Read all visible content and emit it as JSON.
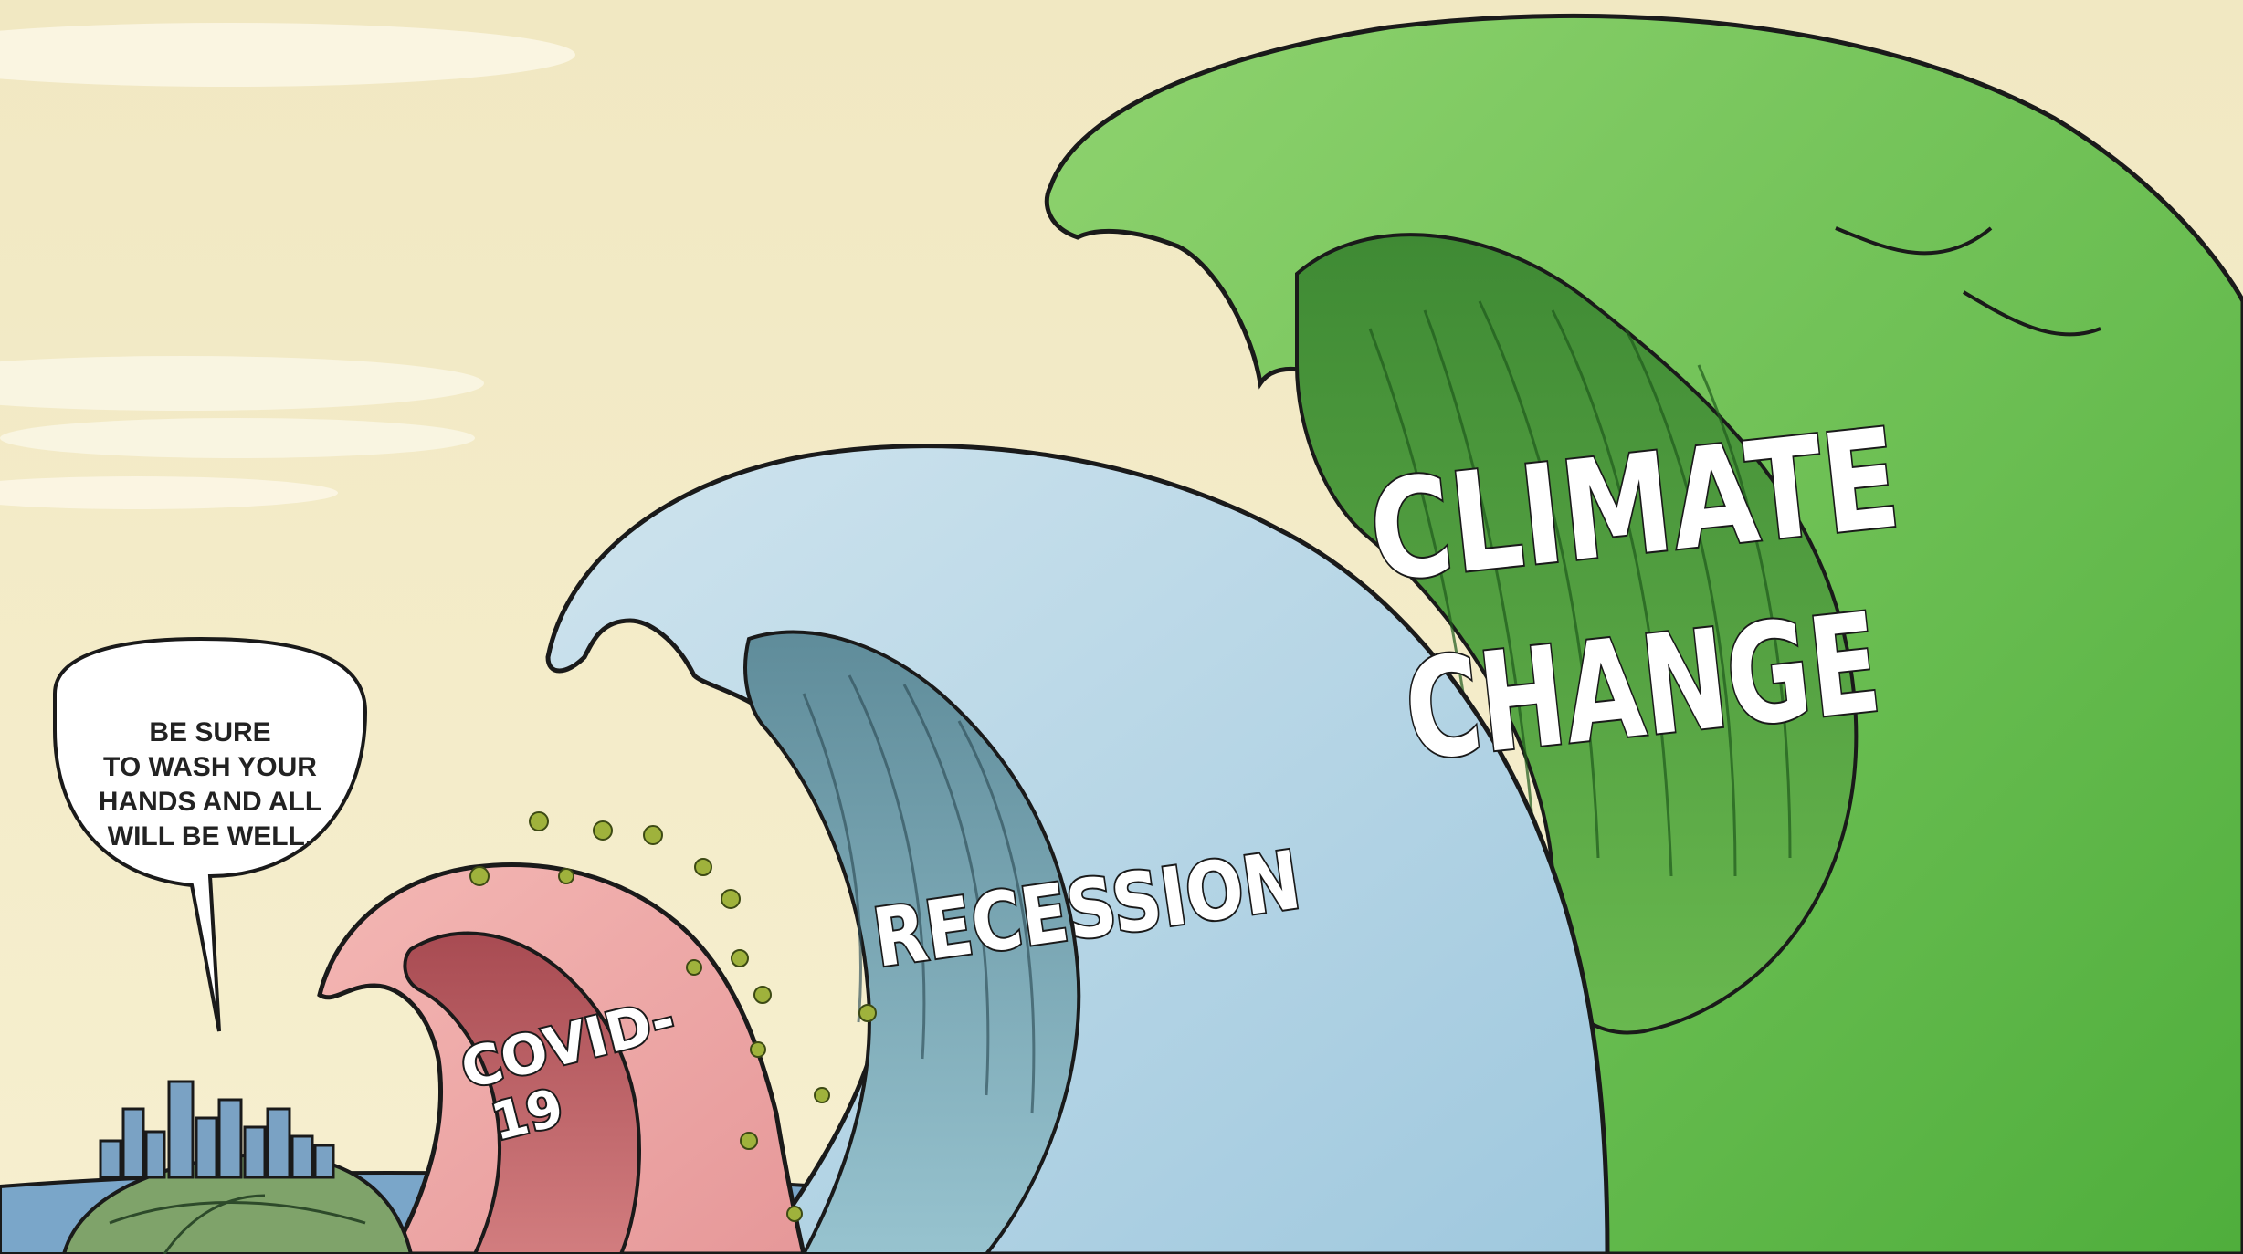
{
  "speech_bubble": {
    "lines": [
      "BE SURE",
      "TO WASH YOUR",
      "HANDS AND ALL",
      "WILL BE WELL."
    ]
  },
  "waves": {
    "covid": {
      "line1": "COVID-",
      "line2": "19"
    },
    "recession": {
      "label": "RECESSION"
    },
    "climate": {
      "line1": "CLIMATE",
      "line2": "CHANGE"
    }
  },
  "colors": {
    "sky": "#f3ebc6",
    "climate_wave": "#6cc14e",
    "climate_inner": "#3f8f34",
    "recession_wave": "#a9cfe3",
    "recession_inner": "#6e9aa8",
    "covid_wave": "#e8a0a2",
    "covid_inner": "#b8595e",
    "sea": "#7aa6c9",
    "island": "#7fa36a"
  },
  "icons": [
    "virus-icon",
    "city-skyline-icon",
    "globe-icon"
  ]
}
